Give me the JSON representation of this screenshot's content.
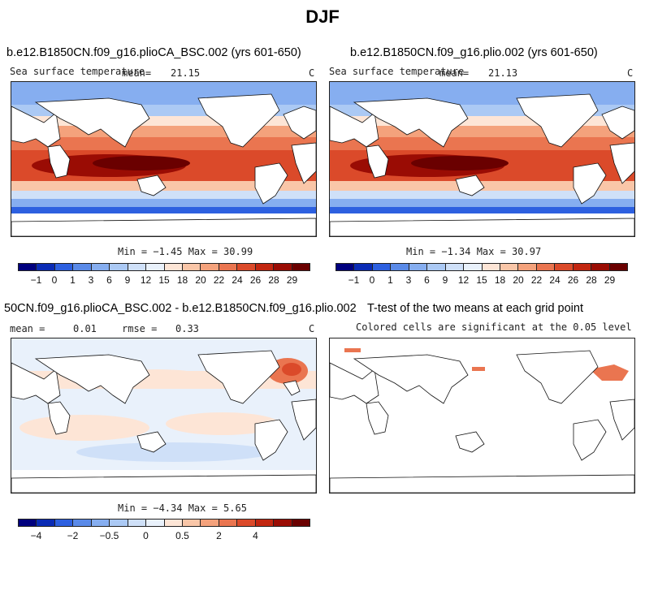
{
  "title": "DJF",
  "panels": [
    {
      "title": "b.e12.B1850CN.f09_g16.plioCA_BSC.002 (yrs 601-650)",
      "variable": "Sea surface temperature",
      "mean_label": "mean=",
      "mean_value": "21.15",
      "units": "C",
      "min_max": "Min = −1.45 Max =  30.99"
    },
    {
      "title": "b.e12.B1850CN.f09_g16.plio.002 (yrs 601-650)",
      "variable": "Sea surface temperature",
      "mean_label": "mean=",
      "mean_value": "21.13",
      "units": "C",
      "min_max": "Min = −1.34 Max =  30.97"
    },
    {
      "title": "50CN.f09_g16.plioCA_BSC.002 - b.e12.B1850CN.f09_g16.plio.002",
      "mean_label": "mean =",
      "mean_value": "0.01",
      "rmse_label": "rmse =",
      "rmse_value": "0.33",
      "units": "C",
      "min_max": "Min = −4.34 Max =   5.65"
    },
    {
      "title": "T-test of the two means at each grid point",
      "subtitle": "Colored cells are significant at the 0.05 level"
    }
  ],
  "colorbars": {
    "sst_colors": [
      "#00007e",
      "#0a2bb5",
      "#2d60e0",
      "#5a8ae8",
      "#86aef0",
      "#abc9f4",
      "#cfe0f8",
      "#e9f1fb",
      "#fde5d6",
      "#f9c6a8",
      "#f4a27c",
      "#ea7550",
      "#db4a2a",
      "#c22610",
      "#9a0c04",
      "#6a0000"
    ],
    "sst_ticks": [
      "−1",
      "0",
      "1",
      "3",
      "6",
      "9",
      "12",
      "15",
      "18",
      "20",
      "22",
      "24",
      "26",
      "28",
      "29"
    ],
    "diff_colors": [
      "#00007e",
      "#0a2bb5",
      "#2d60e0",
      "#5a8ae8",
      "#86aef0",
      "#abc9f4",
      "#cfe0f8",
      "#e9f1fb",
      "#fde5d6",
      "#f9c6a8",
      "#f4a27c",
      "#ea7550",
      "#db4a2a",
      "#c22610",
      "#9a0c04",
      "#6a0000"
    ],
    "diff_ticks": [
      "−4",
      "−2",
      "−0.5",
      "0",
      "0.5",
      "2",
      "4"
    ]
  }
}
